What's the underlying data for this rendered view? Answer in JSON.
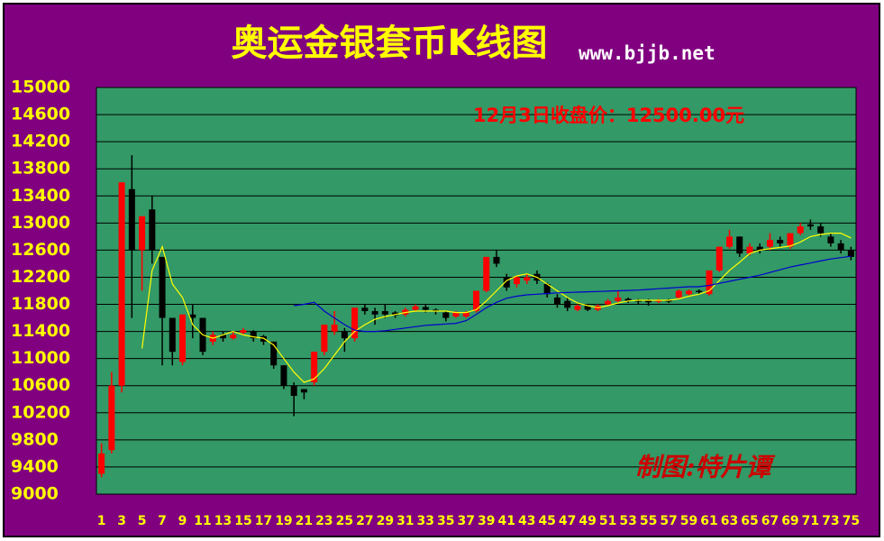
{
  "chart_data": {
    "type": "candlestick",
    "title": "奥运金银套币K线图",
    "site": "www.bjjb.net",
    "annotation": "12月3日收盘价：12500.00元",
    "credit": "制图:特片谭",
    "categories": [
      1,
      null,
      3,
      null,
      5,
      null,
      7,
      null,
      9,
      null,
      11,
      null,
      13,
      null,
      15,
      null,
      17,
      null,
      19,
      null,
      21,
      null,
      23,
      null,
      25,
      null,
      27,
      null,
      29,
      null,
      31,
      null,
      33,
      null,
      35,
      null,
      37,
      null,
      39,
      null,
      41,
      null,
      43,
      null,
      45,
      null,
      47,
      null,
      49,
      null,
      51,
      null,
      53,
      null,
      55,
      null,
      57,
      null,
      59,
      null,
      61,
      null,
      63,
      null,
      65,
      null,
      67,
      null,
      69,
      null,
      71,
      null,
      73,
      null,
      75
    ],
    "open": [
      9300,
      9650,
      10600,
      13500,
      12600,
      13200,
      12500,
      11600,
      10950,
      11650,
      11600,
      11250,
      11350,
      11300,
      11380,
      11400,
      11330,
      11250,
      10900,
      10600,
      10550,
      10650,
      11100,
      11400,
      11400,
      11300,
      11750,
      11700,
      11700,
      11680,
      11650,
      11720,
      11760,
      11720,
      11680,
      11620,
      11620,
      11700,
      12000,
      12500,
      12200,
      12100,
      12150,
      12250,
      12100,
      11900,
      11850,
      11720,
      11780,
      11720,
      11800,
      11850,
      11880,
      11860,
      11860,
      11840,
      11860,
      11900,
      11950,
      12000,
      11950,
      12300,
      12650,
      12800,
      12550,
      12650,
      12650,
      12750,
      12650,
      12850,
      12980,
      12950,
      12800,
      12700,
      12600
    ],
    "high": [
      9750,
      10800,
      13600,
      14000,
      13100,
      13400,
      12500,
      11600,
      11650,
      11800,
      11600,
      11400,
      11400,
      11400,
      11450,
      11420,
      11350,
      11250,
      10900,
      10650,
      10550,
      11100,
      11500,
      11700,
      11450,
      11750,
      11800,
      11750,
      11800,
      11700,
      11750,
      11800,
      11800,
      11740,
      11700,
      11700,
      11700,
      12000,
      12500,
      12600,
      12250,
      12220,
      12250,
      12300,
      12120,
      11950,
      11900,
      11800,
      11800,
      11800,
      11880,
      12000,
      11900,
      11880,
      11880,
      11880,
      11880,
      12020,
      12020,
      12020,
      12300,
      12650,
      12900,
      12800,
      12700,
      12700,
      12850,
      12800,
      12850,
      13000,
      13050,
      13000,
      12850,
      12750,
      12650
    ],
    "low": [
      9250,
      9600,
      10500,
      11600,
      12000,
      12400,
      10900,
      10900,
      10900,
      11300,
      11050,
      11200,
      11250,
      11280,
      11350,
      11250,
      11200,
      10850,
      10550,
      10150,
      10400,
      10600,
      11050,
      11350,
      11100,
      11250,
      11650,
      11500,
      11600,
      11600,
      11620,
      11700,
      11680,
      11650,
      11550,
      11600,
      11600,
      11680,
      11980,
      12350,
      12000,
      12050,
      12100,
      12100,
      11900,
      11750,
      11700,
      11700,
      11700,
      11700,
      11780,
      11830,
      11820,
      11800,
      11780,
      11820,
      11820,
      11880,
      11930,
      11950,
      11930,
      12280,
      12620,
      12500,
      12520,
      12550,
      12600,
      12650,
      12620,
      12820,
      12900,
      12800,
      12650,
      12550,
      12450
    ],
    "close": [
      9600,
      10600,
      13600,
      12600,
      13100,
      12600,
      11600,
      11100,
      11650,
      11600,
      11100,
      11350,
      11300,
      11350,
      11420,
      11300,
      11250,
      10900,
      10600,
      10450,
      10500,
      11100,
      11500,
      11500,
      11300,
      11750,
      11700,
      11650,
      11650,
      11640,
      11720,
      11770,
      11720,
      11700,
      11600,
      11680,
      11680,
      12000,
      12500,
      12400,
      12050,
      12200,
      12200,
      12150,
      11950,
      11800,
      11750,
      11780,
      11720,
      11780,
      11850,
      11900,
      11850,
      11850,
      11830,
      11860,
      11850,
      12000,
      12000,
      11980,
      12300,
      12650,
      12800,
      12550,
      12650,
      12600,
      12750,
      12700,
      12850,
      12950,
      12950,
      12850,
      12700,
      12600,
      12500
    ],
    "up_color": "#ff0000",
    "down_color": "#000000",
    "lines": [
      {
        "color": "#ffff00",
        "values": [
          null,
          null,
          null,
          null,
          11150,
          12300,
          12650,
          12100,
          11900,
          11500,
          11350,
          11300,
          11350,
          11400,
          11350,
          11320,
          11300,
          11200,
          11000,
          10800,
          10650,
          10700,
          10850,
          11050,
          11250,
          11400,
          11500,
          11580,
          11620,
          11650,
          11680,
          11700,
          11700,
          11700,
          11700,
          11680,
          11680,
          11720,
          11850,
          12000,
          12150,
          12220,
          12250,
          12200,
          12100,
          12000,
          11900,
          11820,
          11780,
          11750,
          11780,
          11820,
          11850,
          11860,
          11860,
          11860,
          11860,
          11880,
          11920,
          11950,
          12000,
          12150,
          12300,
          12420,
          12550,
          12600,
          12620,
          12640,
          12660,
          12720,
          12800,
          12830,
          12850,
          12850,
          12780
        ]
      },
      {
        "color": "#0000cc",
        "values": [
          null,
          null,
          null,
          null,
          null,
          null,
          null,
          null,
          null,
          null,
          null,
          null,
          null,
          null,
          null,
          null,
          null,
          null,
          null,
          11780,
          11800,
          11830,
          11700,
          11600,
          11500,
          11420,
          11400,
          11400,
          11410,
          11430,
          11450,
          11470,
          11490,
          11500,
          11510,
          11520,
          11560,
          11650,
          11750,
          11830,
          11890,
          11920,
          11940,
          11950,
          11960,
          11970,
          11975,
          11980,
          11985,
          11990,
          11995,
          12000,
          12005,
          12010,
          12020,
          12030,
          12040,
          12050,
          12060,
          12060,
          12080,
          12110,
          12140,
          12170,
          12200,
          12230,
          12270,
          12310,
          12350,
          12380,
          12410,
          12440,
          12470,
          12490,
          12510
        ]
      }
    ],
    "ylim": [
      9000,
      15000
    ],
    "yticks": [
      9000,
      9400,
      9800,
      10200,
      10600,
      11000,
      11400,
      11800,
      12200,
      12600,
      13000,
      13400,
      13800,
      14200,
      14600,
      15000
    ],
    "grid": true
  }
}
